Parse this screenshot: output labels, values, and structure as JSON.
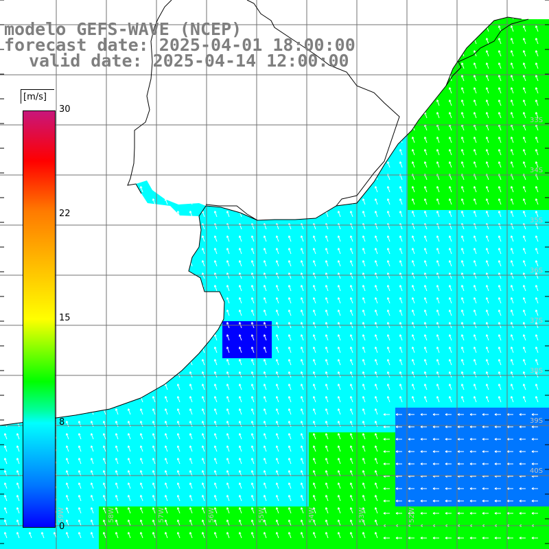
{
  "title": {
    "model": "modelo GEFS-WAVE (NCEP)",
    "forecast": "forecast date: 2025-04-01 18:00:00",
    "valid": "valid date: 2025-04-14 12:00:00"
  },
  "colorbar": {
    "units": "[m/s]",
    "ticks": [
      {
        "label": "30",
        "value": 30
      },
      {
        "label": "22",
        "value": 22
      },
      {
        "label": "15",
        "value": 15
      },
      {
        "label": "8",
        "value": 8
      },
      {
        "label": "0",
        "value": 0
      }
    ],
    "colors": [
      "#0000ff",
      "#0077ff",
      "#00ffff",
      "#00ff00",
      "#ffff00",
      "#ff7a00",
      "#ff0000",
      "#c8167b"
    ]
  },
  "map": {
    "grid_lat_labels": [
      "33S",
      "34S",
      "35S",
      "36S",
      "37S",
      "38S",
      "39S",
      "40S"
    ],
    "grid_lon_labels": [
      "59W",
      "58W",
      "57W",
      "56W",
      "55W",
      "54W",
      "53W",
      "52W"
    ],
    "arrow_color": "#ffffff",
    "coast_color": "#000000"
  }
}
